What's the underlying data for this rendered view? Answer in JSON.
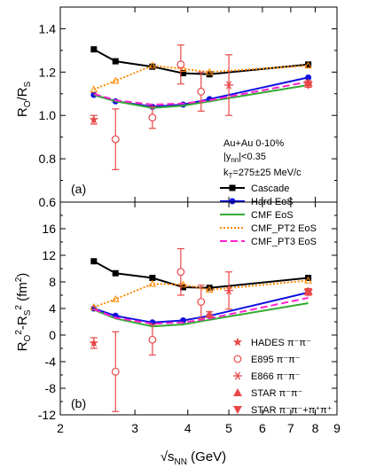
{
  "chart_data": [
    {
      "type": "line",
      "panel_label": "(a)",
      "ylabel_main": "R",
      "ylabel_sub1": "O",
      "ylabel_mid": "/R",
      "ylabel_sub2": "S",
      "xscale": "log",
      "xlim": [
        2,
        9
      ],
      "ylim": [
        0.6,
        1.5
      ],
      "yticks": [
        "0.6",
        "0.8",
        "1.0",
        "1.2",
        "1.4"
      ],
      "annotations": [
        "Au+Au   0-10%",
        "|y",
        "nn",
        "|<0.35",
        "k",
        "T",
        "=275±25 MeV/c"
      ],
      "legend": [
        "Cascade",
        "Hard EoS",
        "CMF EoS",
        "CMF_PT2 EoS",
        "CMF_PT3 EoS"
      ],
      "series": [
        {
          "name": "Cascade",
          "color": "#000000",
          "marker": "square",
          "dash": "solid",
          "x": [
            2.4,
            2.7,
            3.3,
            3.9,
            4.5,
            7.7
          ],
          "y": [
            1.305,
            1.25,
            1.225,
            1.195,
            1.19,
            1.235
          ]
        },
        {
          "name": "Hard EoS",
          "color": "#1010e0",
          "marker": "circle",
          "dash": "solid",
          "x": [
            2.4,
            2.7,
            3.3,
            3.9,
            4.5,
            7.7
          ],
          "y": [
            1.095,
            1.065,
            1.04,
            1.05,
            1.075,
            1.175
          ]
        },
        {
          "name": "CMF EoS",
          "color": "#33aa33",
          "marker": "none",
          "dash": "solid",
          "x": [
            2.4,
            2.7,
            3.3,
            3.9,
            4.5,
            7.7
          ],
          "y": [
            1.095,
            1.065,
            1.035,
            1.045,
            1.065,
            1.14
          ]
        },
        {
          "name": "CMF_PT2 EoS",
          "color": "#ff8800",
          "marker": "triangle",
          "dash": "dotted",
          "x": [
            2.4,
            2.7,
            3.3,
            3.9,
            4.5,
            7.7
          ],
          "y": [
            1.12,
            1.16,
            1.23,
            1.215,
            1.2,
            1.23
          ]
        },
        {
          "name": "CMF_PT3 EoS",
          "color": "#ff22cc",
          "marker": "none",
          "dash": "dashed",
          "x": [
            2.4,
            2.7,
            3.3,
            3.9,
            4.5,
            7.7
          ],
          "y": [
            1.1,
            1.07,
            1.05,
            1.055,
            1.07,
            1.155
          ]
        }
      ],
      "data_points": [
        {
          "name": "HADES",
          "marker": "star",
          "x": [
            2.4
          ],
          "y": [
            0.98
          ],
          "err": [
            0.02
          ]
        },
        {
          "name": "E895",
          "marker": "open-circle",
          "x": [
            2.7,
            3.3,
            3.85,
            4.3
          ],
          "y": [
            0.89,
            0.99,
            1.235,
            1.11
          ],
          "err": [
            0.14,
            0.05,
            0.09,
            0.09
          ]
        },
        {
          "name": "E866",
          "marker": "asterisk",
          "x": [
            5.0
          ],
          "y": [
            1.14
          ],
          "err": [
            0.14
          ]
        },
        {
          "name": "STAR π⁻π⁻",
          "marker": "triangle-up",
          "x": [
            7.7
          ],
          "y": [
            1.15
          ],
          "err": [
            0.01
          ]
        },
        {
          "name": "STAR π⁻π⁺+π⁺π⁺",
          "marker": "triangle-down",
          "x": [
            7.7
          ],
          "y": [
            1.14
          ],
          "err": [
            0.01
          ]
        }
      ]
    },
    {
      "type": "line",
      "panel_label": "(b)",
      "ylabel_main": "R",
      "ylabel_sub1": "O",
      "ylabel_sup1": "2",
      "ylabel_mid": "-R",
      "ylabel_sub2": "S",
      "ylabel_sup2": "2",
      "ylabel_unit": " (fm",
      "ylabel_unit_sup": "2",
      "ylabel_unit_end": ")",
      "xlabel_pre": "√s",
      "xlabel_sub": "NN",
      "xlabel_post": " (GeV)",
      "xscale": "log",
      "xlim": [
        2,
        9
      ],
      "ylim": [
        -12,
        20
      ],
      "yticks": [
        "-12",
        "-8",
        "-4",
        "0",
        "4",
        "8",
        "12",
        "16"
      ],
      "xticks": [
        "2",
        "3",
        "4",
        "5",
        "6",
        "7",
        "8",
        "9"
      ],
      "legend": [
        "HADES π⁻π⁻",
        "E895 π⁻π⁻",
        "E866 π⁻π⁻",
        "STAR π⁻π⁻",
        "STAR π⁻π⁻+π⁺π⁺"
      ],
      "series": [
        {
          "name": "Cascade",
          "color": "#000000",
          "marker": "square",
          "dash": "solid",
          "x": [
            2.4,
            2.7,
            3.3,
            3.9,
            4.5,
            7.7
          ],
          "y": [
            11.1,
            9.3,
            8.6,
            7.2,
            7.1,
            8.6
          ]
        },
        {
          "name": "Hard EoS",
          "color": "#1010e0",
          "marker": "circle",
          "dash": "solid",
          "x": [
            2.4,
            2.7,
            3.3,
            3.9,
            4.5,
            7.7
          ],
          "y": [
            4.0,
            2.9,
            1.9,
            2.2,
            2.9,
            6.4
          ]
        },
        {
          "name": "CMF EoS",
          "color": "#33aa33",
          "marker": "none",
          "dash": "solid",
          "x": [
            2.4,
            2.7,
            3.3,
            3.9,
            4.5,
            7.7
          ],
          "y": [
            3.8,
            2.5,
            1.3,
            1.6,
            2.3,
            4.8
          ]
        },
        {
          "name": "CMF_PT2 EoS",
          "color": "#ff8800",
          "marker": "triangle",
          "dash": "dotted",
          "x": [
            2.4,
            2.7,
            3.3,
            3.9,
            4.5,
            7.7
          ],
          "y": [
            4.2,
            5.4,
            7.7,
            7.6,
            6.8,
            8.2
          ]
        },
        {
          "name": "CMF_PT3 EoS",
          "color": "#ff22cc",
          "marker": "none",
          "dash": "dashed",
          "x": [
            2.4,
            2.7,
            3.3,
            3.9,
            4.5,
            7.7
          ],
          "y": [
            3.9,
            2.6,
            1.7,
            1.9,
            2.5,
            5.6
          ]
        }
      ],
      "data_points": [
        {
          "name": "HADES π⁻π⁻",
          "marker": "star",
          "x": [
            2.4
          ],
          "y": [
            -1.2
          ],
          "err": [
            0.8
          ]
        },
        {
          "name": "E895 π⁻π⁻",
          "marker": "open-circle",
          "x": [
            2.7,
            3.3,
            3.85,
            4.3
          ],
          "y": [
            -5.5,
            -0.7,
            9.5,
            5.0
          ],
          "err": [
            6.0,
            2.3,
            3.5,
            2.5
          ]
        },
        {
          "name": "E866 π⁻π⁻",
          "marker": "asterisk",
          "x": [
            5.0
          ],
          "y": [
            6.7
          ],
          "err": [
            2.8
          ]
        },
        {
          "name": "STAR π⁻π⁻",
          "marker": "triangle-up",
          "x": [
            4.5,
            7.7
          ],
          "y": [
            3.1,
            6.6
          ],
          "err": [
            0.4,
            0.4
          ]
        },
        {
          "name": "STAR π⁻π⁻+π⁺π⁺",
          "marker": "triangle-down",
          "x": [
            7.7
          ],
          "y": [
            6.4
          ],
          "err": [
            0.4
          ]
        }
      ]
    }
  ]
}
